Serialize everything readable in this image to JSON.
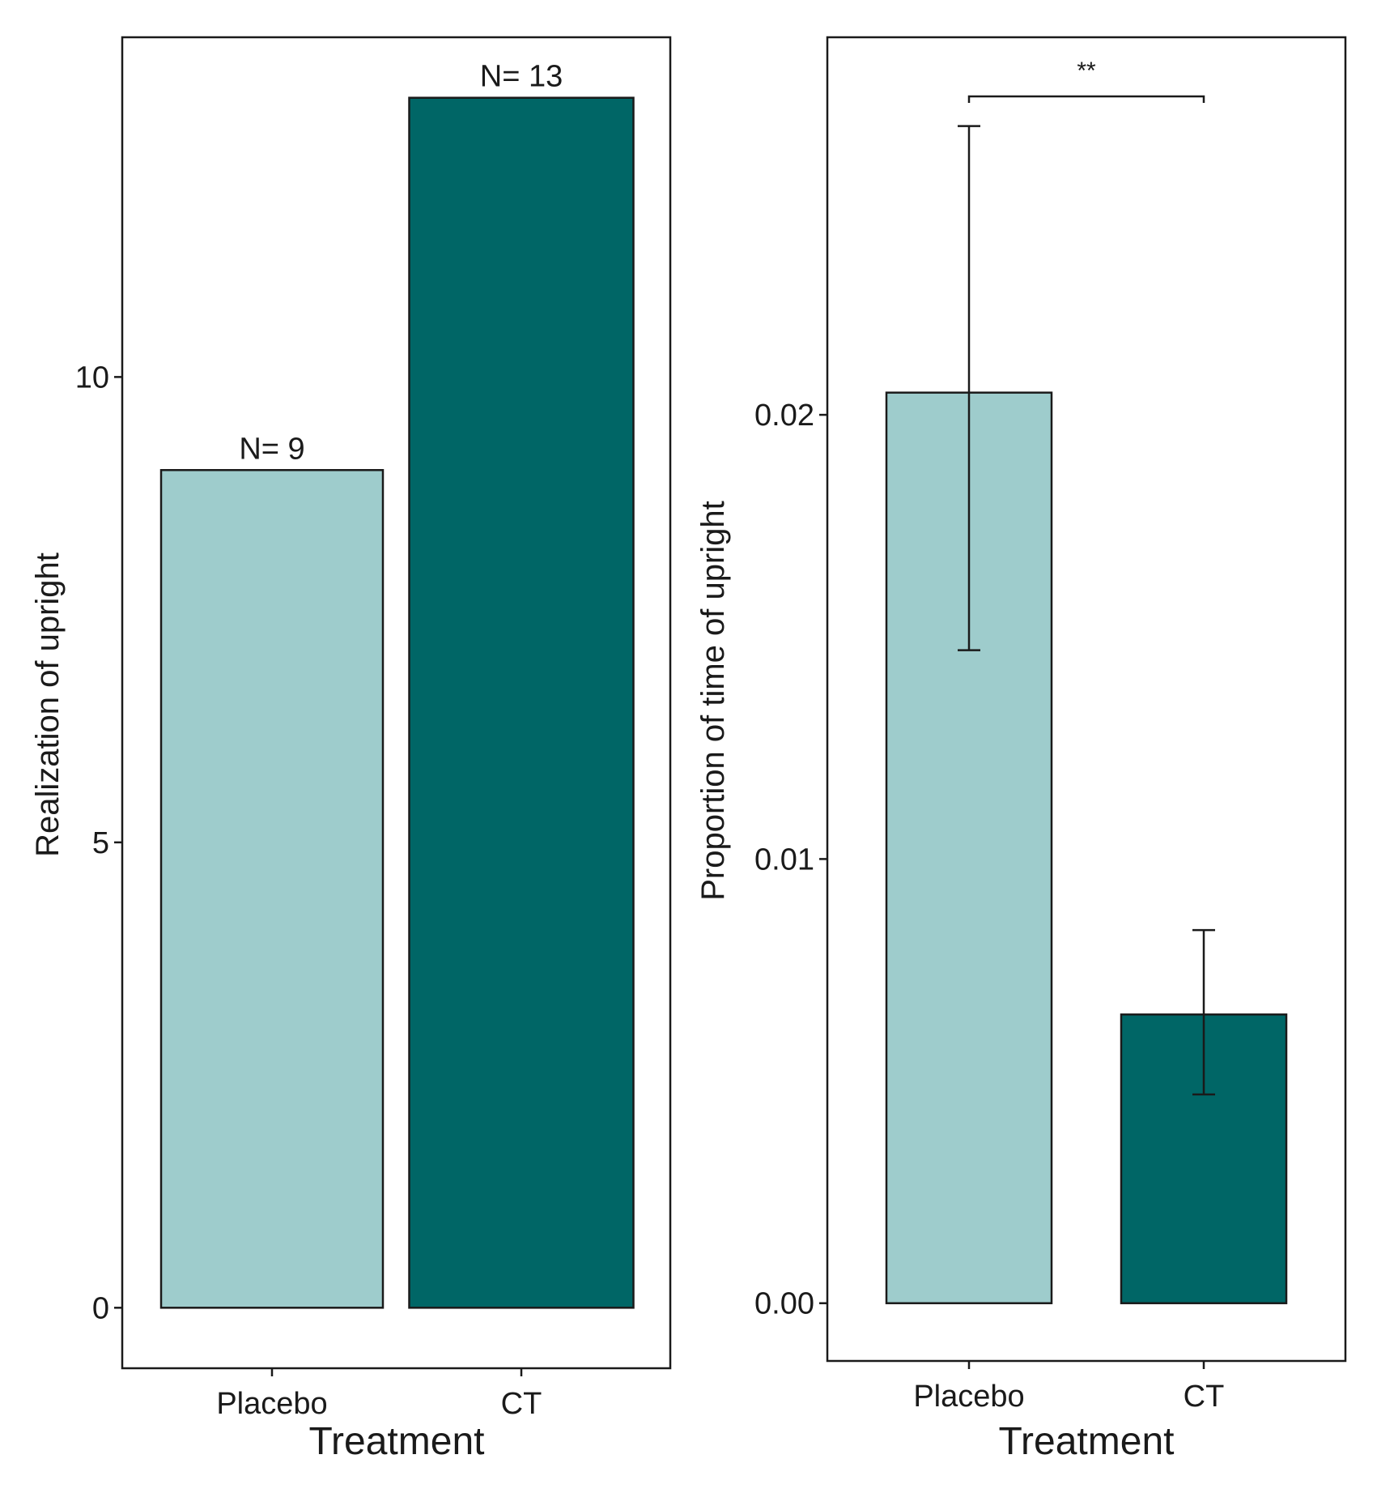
{
  "chart_data": [
    {
      "type": "bar",
      "categories": [
        "Placebo",
        "CT"
      ],
      "values": [
        9,
        13
      ],
      "data_labels": [
        "N= 9",
        "N= 13"
      ],
      "xlabel": "Treatment",
      "ylabel": "Realization of upright",
      "ylim": [
        -0.65,
        13.65
      ],
      "yticks": [
        0,
        5,
        10
      ],
      "ytick_labels": [
        "0",
        "5",
        "10"
      ],
      "colors": [
        "#9ecccc",
        "#006666"
      ],
      "grid": false,
      "legend": "none"
    },
    {
      "type": "bar",
      "categories": [
        "Placebo",
        "CT"
      ],
      "values": [
        0.0205,
        0.0065
      ],
      "error_bars": [
        [
          0.0147,
          0.0265
        ],
        [
          0.0047,
          0.0084
        ]
      ],
      "significance": {
        "label": "**",
        "between": [
          "Placebo",
          "CT"
        ]
      },
      "xlabel": "Treatment",
      "ylabel": "Proportion of time of upright",
      "ylim": [
        -0.0013,
        0.0285
      ],
      "yticks": [
        0.0,
        0.01,
        0.02
      ],
      "ytick_labels": [
        "0.00",
        "0.01",
        "0.02"
      ],
      "colors": [
        "#9ecccc",
        "#006666"
      ],
      "grid": false,
      "legend": "none"
    }
  ]
}
